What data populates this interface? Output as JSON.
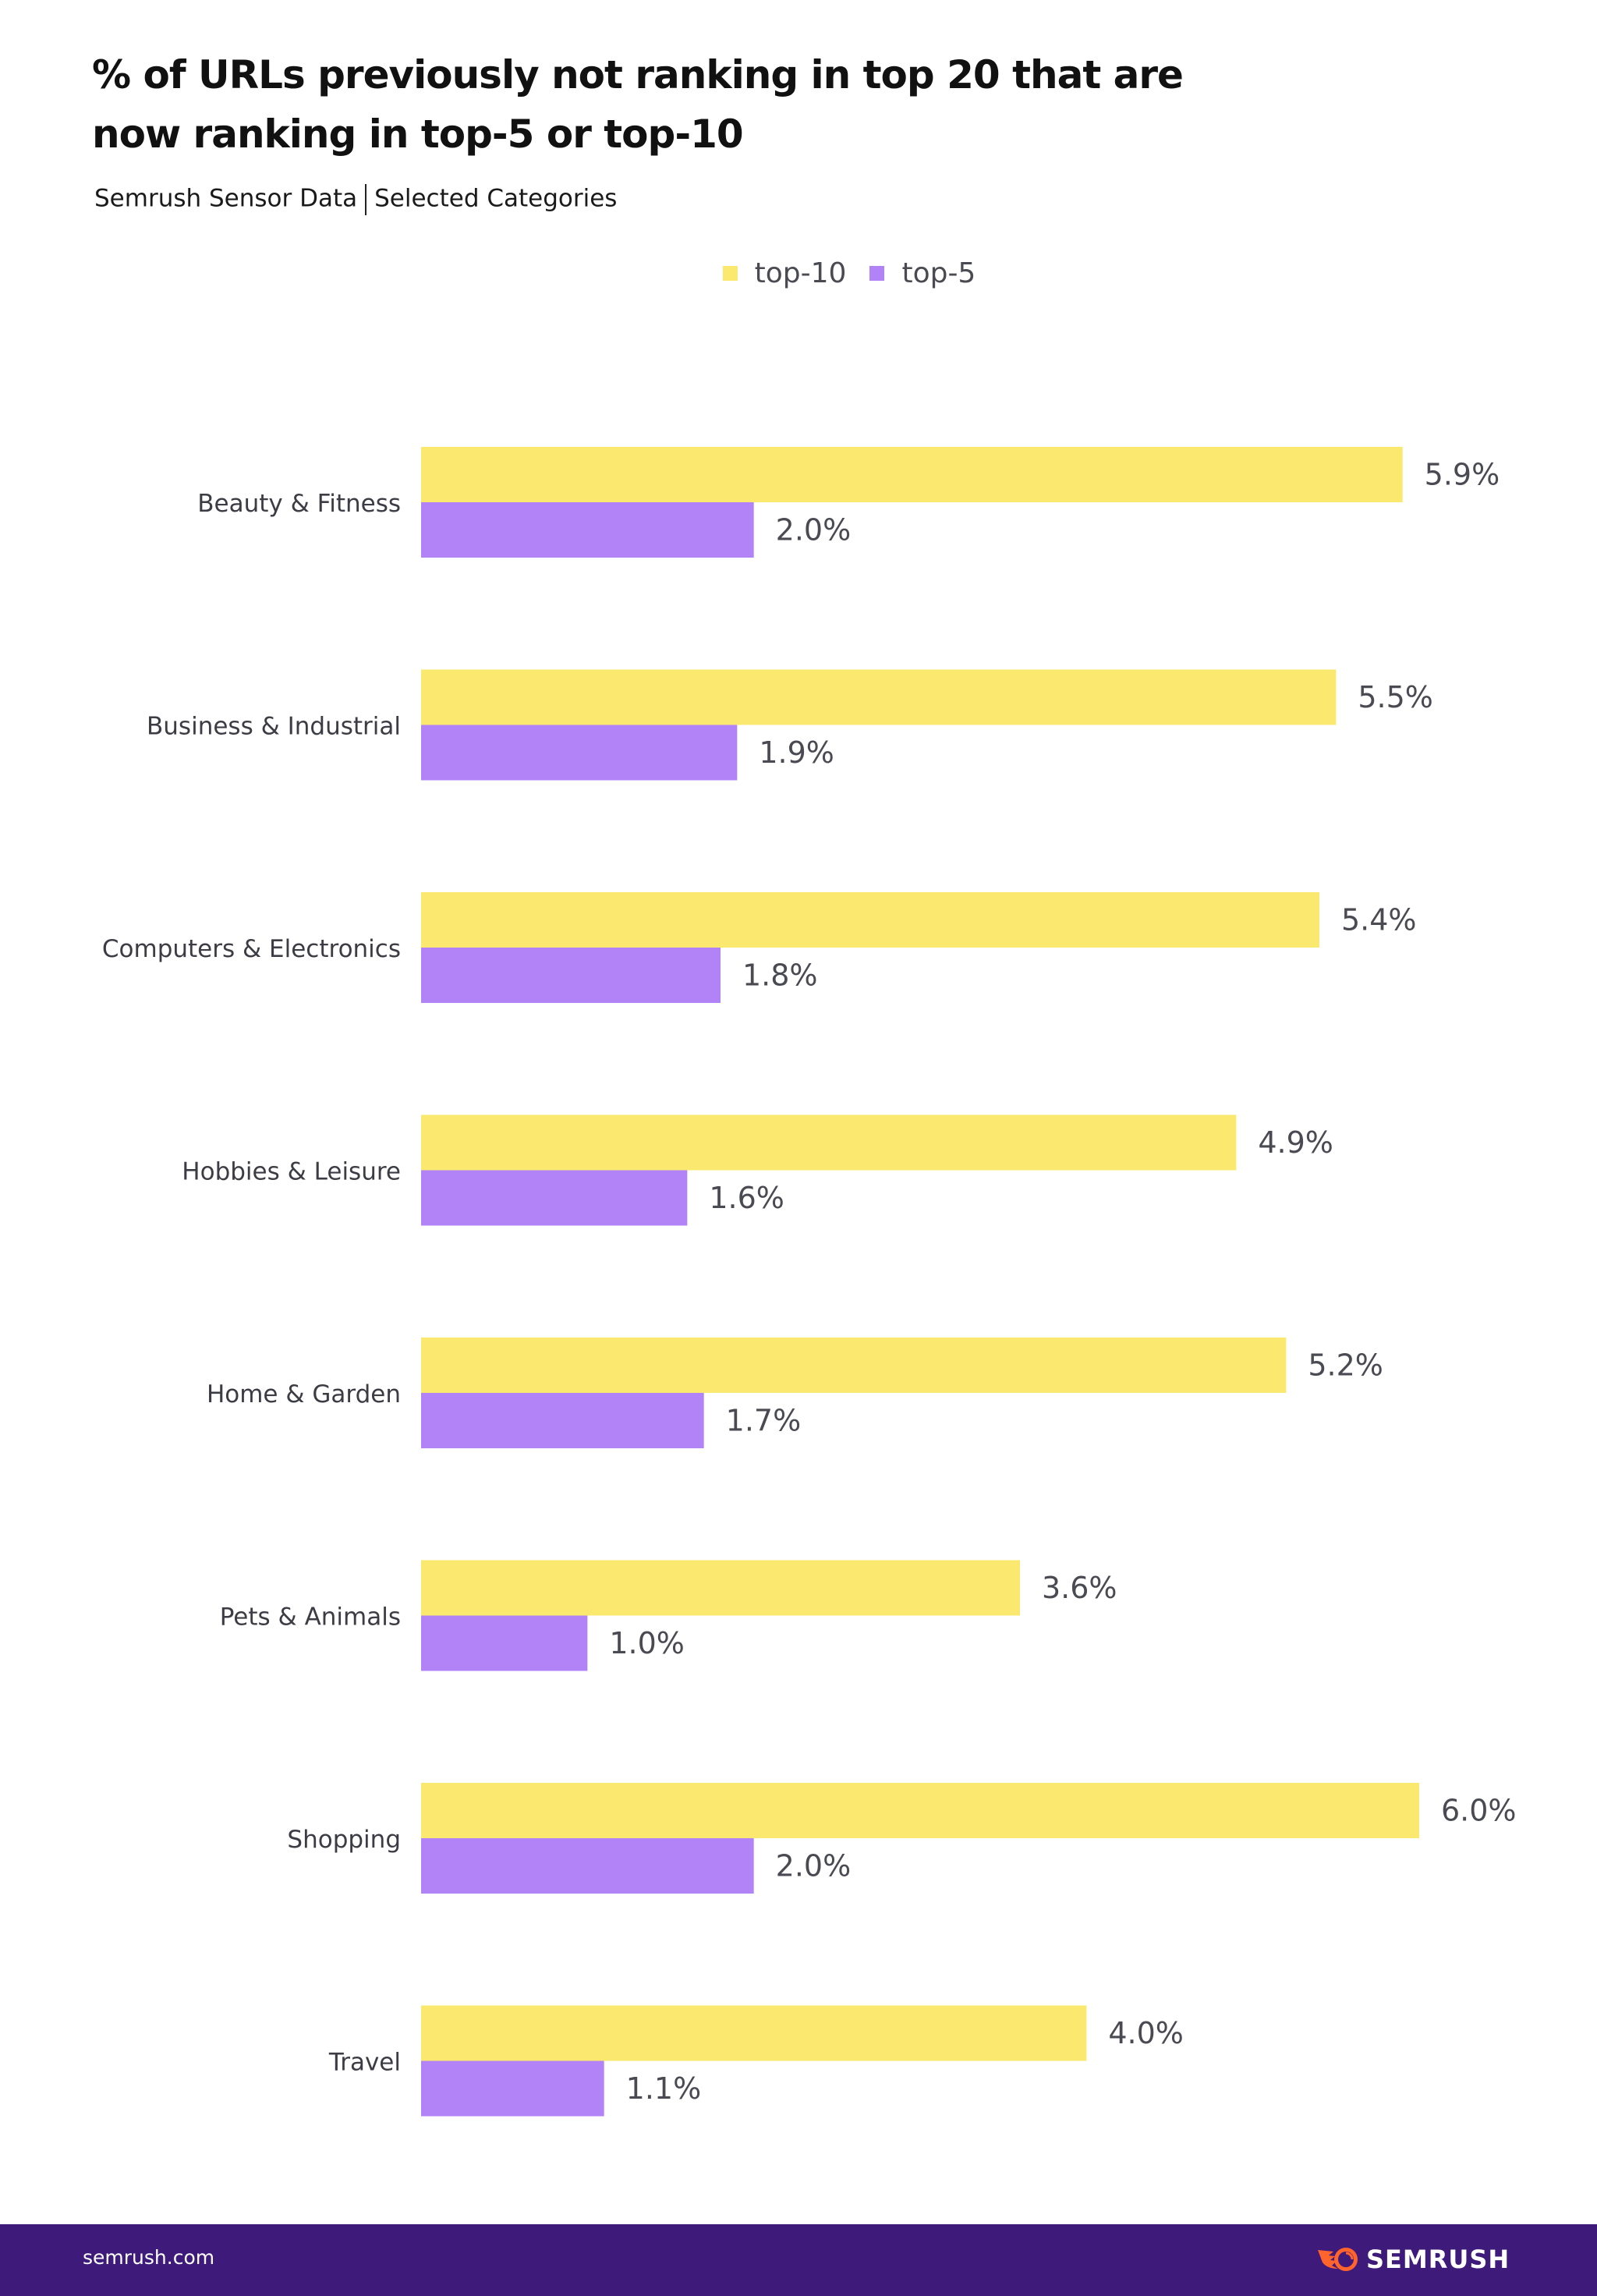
{
  "header": {
    "title_line1": "% of URLs previously not ranking in top 20 that are",
    "title_line2": "now ranking in top-5 or top-10",
    "subtitle_left": "Semrush Sensor Data",
    "subtitle_right": "Selected Categories"
  },
  "legend": [
    {
      "label": "top-10",
      "color": "#fae96e"
    },
    {
      "label": "top-5",
      "color": "#b183f6"
    }
  ],
  "chart_data": {
    "type": "bar",
    "orientation": "horizontal",
    "title": "% of URLs previously not ranking in top 20 that are now ranking in top-5 or top-10",
    "subtitle": "Semrush Sensor Data | Selected Categories",
    "xlabel": "",
    "ylabel": "",
    "xlim": [
      0,
      6.0
    ],
    "grid": false,
    "legend_position": "top-center",
    "categories": [
      "Beauty & Fitness",
      "Business & Industrial",
      "Computers & Electronics",
      "Hobbies & Leisure",
      "Home & Garden",
      "Pets & Animals",
      "Shopping",
      "Travel"
    ],
    "series": [
      {
        "name": "top-10",
        "color": "#fae96e",
        "values": [
          5.9,
          5.5,
          5.4,
          4.9,
          5.2,
          3.6,
          6.0,
          4.0
        ],
        "labels": [
          "5.9%",
          "5.5%",
          "5.4%",
          "4.9%",
          "5.2%",
          "3.6%",
          "6.0%",
          "4.0%"
        ]
      },
      {
        "name": "top-5",
        "color": "#b183f6",
        "values": [
          2.0,
          1.9,
          1.8,
          1.6,
          1.7,
          1.0,
          2.0,
          1.1
        ],
        "labels": [
          "2.0%",
          "1.9%",
          "1.8%",
          "1.6%",
          "1.7%",
          "1.0%",
          "2.0%",
          "1.1%"
        ]
      }
    ]
  },
  "footer": {
    "url": "semrush.com",
    "brand": "SEMRUSH",
    "background": "#3e1a7a",
    "logo_color": "#ff642d"
  }
}
